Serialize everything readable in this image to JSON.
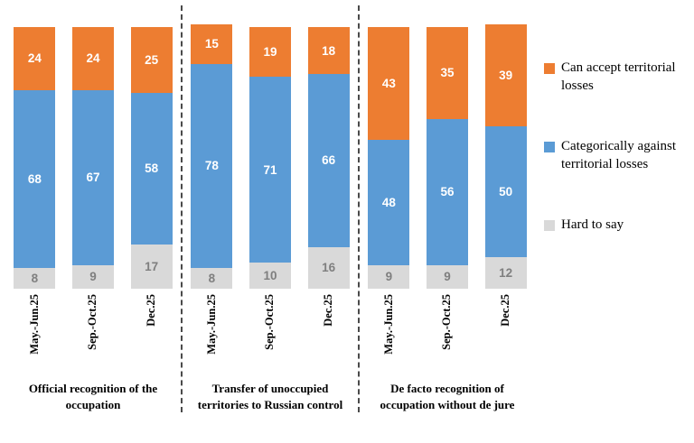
{
  "chart_data": {
    "type": "bar",
    "stacked": true,
    "unit": "percent",
    "ylim": [
      0,
      100
    ],
    "grid": false,
    "legend_position": "right",
    "categories": [
      "May.-Jun.25",
      "Sep.-Oct.25",
      "Dec.25"
    ],
    "series_order_bottom_to_top": [
      "hard_to_say",
      "against",
      "accept"
    ],
    "legend_order": [
      "accept",
      "against",
      "hard_to_say"
    ],
    "series_meta": {
      "accept": {
        "label": "Can accept territorial losses",
        "color": "#ED7D31",
        "text_color": "#FFFFFF"
      },
      "against": {
        "label": "Categorically against territorial losses",
        "color": "#5B9BD5",
        "text_color": "#FFFFFF"
      },
      "hard_to_say": {
        "label": "Hard to say",
        "color": "#D9D9D9",
        "text_color": "#7F7F7F"
      }
    },
    "groups": [
      {
        "label": "Official recognition of the occupation",
        "values": {
          "accept": [
            24,
            24,
            25
          ],
          "against": [
            68,
            67,
            58
          ],
          "hard_to_say": [
            8,
            9,
            17
          ]
        }
      },
      {
        "label": "Transfer of unoccupied territories to Russian control",
        "values": {
          "accept": [
            15,
            19,
            18
          ],
          "against": [
            78,
            71,
            66
          ],
          "hard_to_say": [
            8,
            10,
            16
          ]
        }
      },
      {
        "label": "De facto recognition of occupation without de jure",
        "values": {
          "accept": [
            43,
            35,
            39
          ],
          "against": [
            48,
            56,
            50
          ],
          "hard_to_say": [
            9,
            9,
            12
          ]
        }
      }
    ],
    "divider_style": "vertical dashed line between groups"
  }
}
